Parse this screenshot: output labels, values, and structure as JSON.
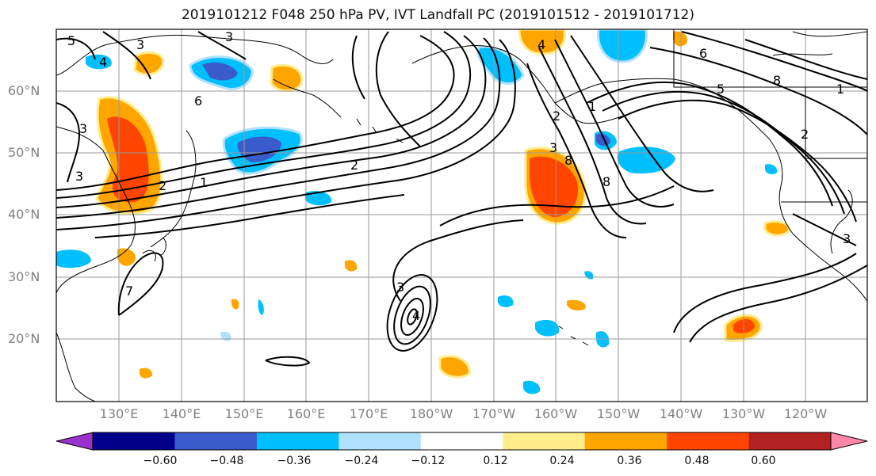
{
  "title": "2019101212 F048 250 hPa PV, IVT Landfall PC (2019101512 - 2019101712)",
  "lat_labels": [
    "60°N",
    "50°N",
    "40°N",
    "30°N",
    "20°N"
  ],
  "lon_labels": [
    "130°E",
    "140°E",
    "150°E",
    "160°E",
    "170°E",
    "180°W",
    "170°W",
    "160°W",
    "150°W",
    "140°W",
    "130°W",
    "120°W"
  ],
  "colorbar": {
    "ticks": [
      "−0.60",
      "−0.48",
      "−0.36",
      "−0.24",
      "−0.12",
      "0.12",
      "0.24",
      "0.36",
      "0.48",
      "0.60"
    ],
    "colors": [
      "#9932CC",
      "#00008B",
      "#3A5BCB",
      "#00BFFF",
      "#B0E2FF",
      "#FFFFFF",
      "#FFEC8B",
      "#FFA500",
      "#FF4500",
      "#B22222",
      "#FF88AA"
    ]
  },
  "contour_labels": [
    "5",
    "3",
    "3",
    "4",
    "6",
    "3",
    "2",
    "3",
    "1",
    "2",
    "4",
    "2",
    "1",
    "3",
    "8",
    "6",
    "5",
    "8",
    "8",
    "2",
    "1",
    "3",
    "3",
    "4",
    "7"
  ]
}
